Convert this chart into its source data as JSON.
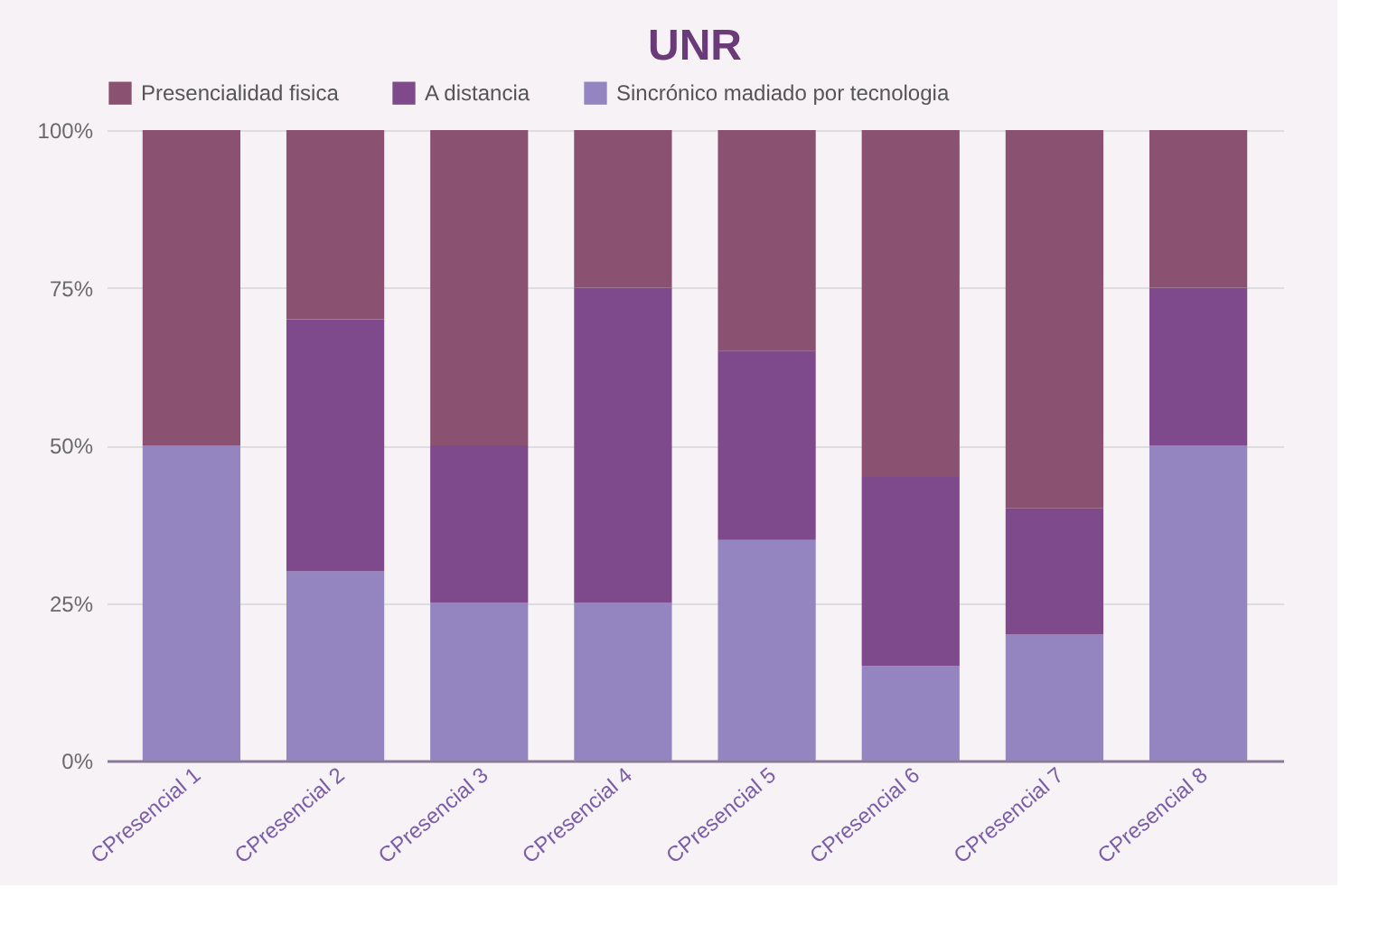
{
  "chart_data": {
    "type": "bar",
    "title": "UNR",
    "categories": [
      "CPresencial 1",
      "CPresencial 2",
      "CPresencial 3",
      "CPresencial 4",
      "CPresencial 5",
      "CPresencial 6",
      "CPresencial 7",
      "CPresencial 8"
    ],
    "stacked": true,
    "series": [
      {
        "name": "Sincrónico madiado por tecnologia",
        "color": "#9485c0",
        "values": [
          50,
          30,
          25,
          25,
          35,
          15,
          20,
          50
        ]
      },
      {
        "name": "A distancia",
        "color": "#7e4a8c",
        "values": [
          0,
          40,
          25,
          50,
          30,
          30,
          20,
          25
        ]
      },
      {
        "name": "Presencialidad fisica",
        "color": "#8a5270",
        "values": [
          50,
          30,
          50,
          25,
          35,
          55,
          60,
          25
        ]
      }
    ],
    "ylim": [
      0,
      100
    ],
    "yticks": [
      {
        "value": 0,
        "label": "0%"
      },
      {
        "value": 25,
        "label": "25%"
      },
      {
        "value": 50,
        "label": "50%"
      },
      {
        "value": 75,
        "label": "75%"
      },
      {
        "value": 100,
        "label": "100%"
      }
    ],
    "grid": "y",
    "legend": "top"
  }
}
